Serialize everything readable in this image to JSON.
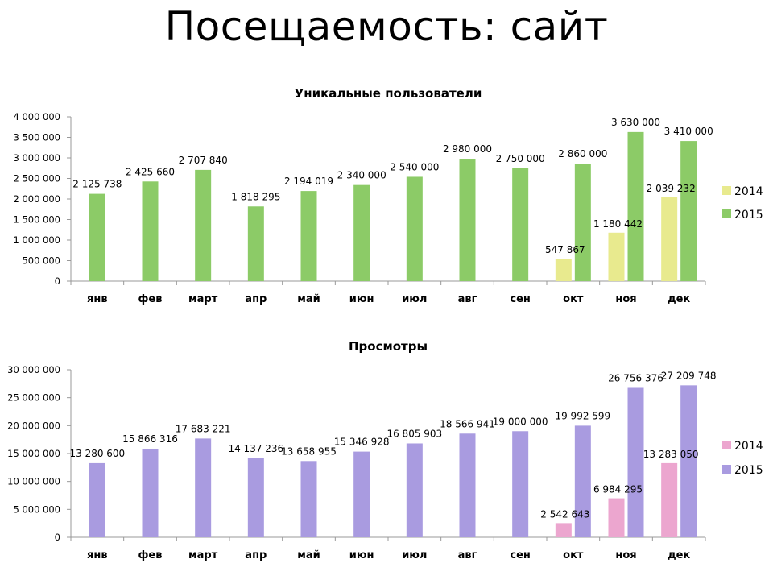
{
  "page_title": "Посещаемость: сайт",
  "chart_data": [
    {
      "type": "bar",
      "title": "Уникальные пользователи",
      "categories": [
        "янв",
        "фев",
        "март",
        "апр",
        "май",
        "июн",
        "июл",
        "авг",
        "сен",
        "окт",
        "ноя",
        "дек"
      ],
      "ylim": [
        0,
        4000000
      ],
      "yticks": [
        "0",
        "500 000",
        "1 000 000",
        "1 500 000",
        "2 000 000",
        "2 500 000",
        "3 000 000",
        "3 500 000",
        "4 000 000"
      ],
      "series": [
        {
          "name": "2014",
          "color": "#E8EA8E",
          "values": [
            null,
            null,
            null,
            null,
            null,
            null,
            null,
            null,
            null,
            547867,
            1180442,
            2039232
          ],
          "labels": [
            "",
            "",
            "",
            "",
            "",
            "",
            "",
            "",
            "",
            "547 867",
            "1 180 442",
            "2 039 232"
          ]
        },
        {
          "name": "2015",
          "color": "#8CCB67",
          "values": [
            2125738,
            2425660,
            2707840,
            1818295,
            2194019,
            2340000,
            2540000,
            2980000,
            2750000,
            2860000,
            3630000,
            3410000
          ],
          "labels": [
            "2 125 738",
            "2 425 660",
            "2 707 840",
            "1 818 295",
            "2 194 019",
            "2 340 000",
            "2 540 000",
            "2 980 000",
            "2 750 000",
            "2 860 000",
            "3 630 000",
            "3 410 000"
          ]
        }
      ],
      "legend": "right"
    },
    {
      "type": "bar",
      "title": "Просмотры",
      "categories": [
        "янв",
        "фев",
        "март",
        "апр",
        "май",
        "июн",
        "июл",
        "авг",
        "сен",
        "окт",
        "ноя",
        "дек"
      ],
      "ylim": [
        0,
        30000000
      ],
      "yticks": [
        "0",
        "5 000 000",
        "10 000 000",
        "15 000 000",
        "20 000 000",
        "25 000 000",
        "30 000 000"
      ],
      "series": [
        {
          "name": "2014",
          "color": "#ECA6CF",
          "values": [
            null,
            null,
            null,
            null,
            null,
            null,
            null,
            null,
            null,
            2542643,
            6984295,
            13283050
          ],
          "labels": [
            "",
            "",
            "",
            "",
            "",
            "",
            "",
            "",
            "",
            "2 542 643",
            "6 984 295",
            "13 283 050"
          ]
        },
        {
          "name": "2015",
          "color": "#A99BE0",
          "values": [
            13280600,
            15866316,
            17683221,
            14137236,
            13658955,
            15346928,
            16805903,
            18566941,
            19000000,
            19992599,
            26756376,
            27209748
          ],
          "labels": [
            "13 280 600",
            "15 866 316",
            "17 683 221",
            "14 137 236",
            "13 658 955",
            "15 346 928",
            "16 805 903",
            "18 566 941",
            "19 000 000",
            "19 992 599",
            "26 756 376",
            "27 209 748"
          ]
        }
      ],
      "legend": "right"
    }
  ]
}
